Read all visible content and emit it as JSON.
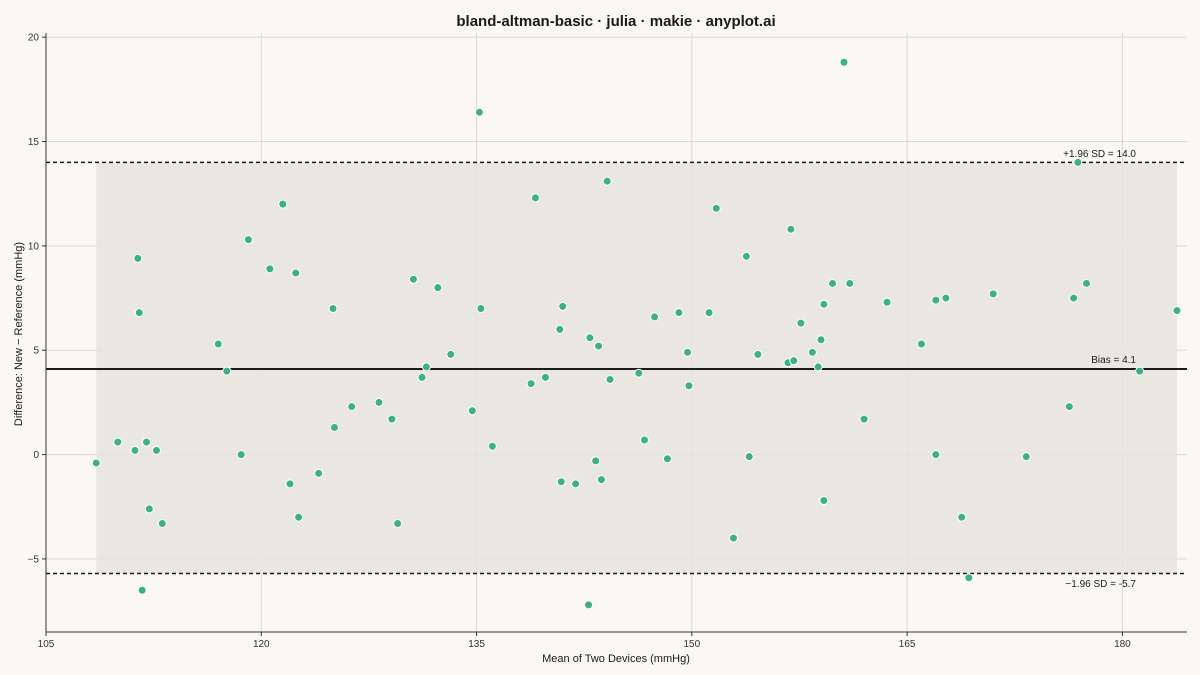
{
  "chart_data": {
    "type": "scatter",
    "title": "bland-altman-basic · julia · makie · anyplot.ai",
    "xlabel": "Mean of Two Devices (mmHg)",
    "ylabel": "Difference: New − Reference (mmHg)",
    "xlim": [
      105,
      184.5
    ],
    "ylim": [
      -8.5,
      20.2
    ],
    "xticks": [
      105,
      120,
      135,
      150,
      165,
      180
    ],
    "yticks": [
      -5,
      0,
      5,
      10,
      15,
      20
    ],
    "grid": true,
    "point_color": "#3FAF87",
    "band_color": "#E6E4DD",
    "background": "#FAF8F1",
    "bias": 4.1,
    "upper_loa": 14.0,
    "lower_loa": -5.7,
    "band_x": [
      108.5,
      183.8
    ],
    "annotations": {
      "upper": "+1.96 SD = 14.0",
      "bias": "Bias = 4.1",
      "lower": "−1.96 SD = -5.7"
    },
    "points": [
      [
        108.5,
        -0.4
      ],
      [
        110.0,
        0.6
      ],
      [
        111.2,
        0.2
      ],
      [
        111.4,
        9.4
      ],
      [
        111.5,
        6.8
      ],
      [
        111.7,
        -6.5
      ],
      [
        112.0,
        0.6
      ],
      [
        112.2,
        -2.6
      ],
      [
        112.7,
        0.2
      ],
      [
        113.1,
        -3.3
      ],
      [
        117.0,
        5.3
      ],
      [
        117.6,
        4.0
      ],
      [
        118.6,
        0.0
      ],
      [
        119.1,
        10.3
      ],
      [
        120.6,
        8.9
      ],
      [
        121.5,
        12.0
      ],
      [
        122.0,
        -1.4
      ],
      [
        122.4,
        8.7
      ],
      [
        122.6,
        -3.0
      ],
      [
        124.0,
        -0.9
      ],
      [
        125.0,
        7.0
      ],
      [
        125.1,
        1.3
      ],
      [
        126.3,
        2.3
      ],
      [
        128.2,
        2.5
      ],
      [
        129.1,
        1.7
      ],
      [
        129.5,
        -3.3
      ],
      [
        130.6,
        8.4
      ],
      [
        131.2,
        3.7
      ],
      [
        131.5,
        4.2
      ],
      [
        132.3,
        8.0
      ],
      [
        133.2,
        4.8
      ],
      [
        134.7,
        2.1
      ],
      [
        135.2,
        16.4
      ],
      [
        135.3,
        7.0
      ],
      [
        136.1,
        0.4
      ],
      [
        138.8,
        3.4
      ],
      [
        139.1,
        12.3
      ],
      [
        139.8,
        3.7
      ],
      [
        140.8,
        6.0
      ],
      [
        141.0,
        7.1
      ],
      [
        140.9,
        -1.3
      ],
      [
        141.9,
        -1.4
      ],
      [
        142.9,
        5.6
      ],
      [
        142.8,
        -7.2
      ],
      [
        143.3,
        -0.3
      ],
      [
        143.5,
        5.2
      ],
      [
        143.7,
        -1.2
      ],
      [
        144.1,
        13.1
      ],
      [
        144.3,
        3.6
      ],
      [
        146.3,
        3.9
      ],
      [
        146.7,
        0.7
      ],
      [
        147.4,
        6.6
      ],
      [
        148.3,
        -0.2
      ],
      [
        149.1,
        6.8
      ],
      [
        149.7,
        4.9
      ],
      [
        149.8,
        3.3
      ],
      [
        151.2,
        6.8
      ],
      [
        151.7,
        11.8
      ],
      [
        152.9,
        -4.0
      ],
      [
        153.8,
        9.5
      ],
      [
        154.0,
        -0.1
      ],
      [
        154.6,
        4.8
      ],
      [
        156.7,
        4.4
      ],
      [
        156.9,
        10.8
      ],
      [
        157.1,
        4.5
      ],
      [
        157.6,
        6.3
      ],
      [
        158.4,
        4.9
      ],
      [
        158.8,
        4.2
      ],
      [
        159.0,
        5.5
      ],
      [
        159.2,
        7.2
      ],
      [
        159.2,
        -2.2
      ],
      [
        159.8,
        8.2
      ],
      [
        160.6,
        18.8
      ],
      [
        161.0,
        8.2
      ],
      [
        162.0,
        1.7
      ],
      [
        163.6,
        7.3
      ],
      [
        166.0,
        5.3
      ],
      [
        167.0,
        7.4
      ],
      [
        167.0,
        0.0
      ],
      [
        167.7,
        7.5
      ],
      [
        168.8,
        -3.0
      ],
      [
        169.3,
        -5.9
      ],
      [
        171.0,
        7.7
      ],
      [
        173.3,
        -0.1
      ],
      [
        176.3,
        2.3
      ],
      [
        176.6,
        7.5
      ],
      [
        176.9,
        14.0
      ],
      [
        177.5,
        8.2
      ],
      [
        181.2,
        4.0
      ],
      [
        183.8,
        6.9
      ]
    ]
  }
}
